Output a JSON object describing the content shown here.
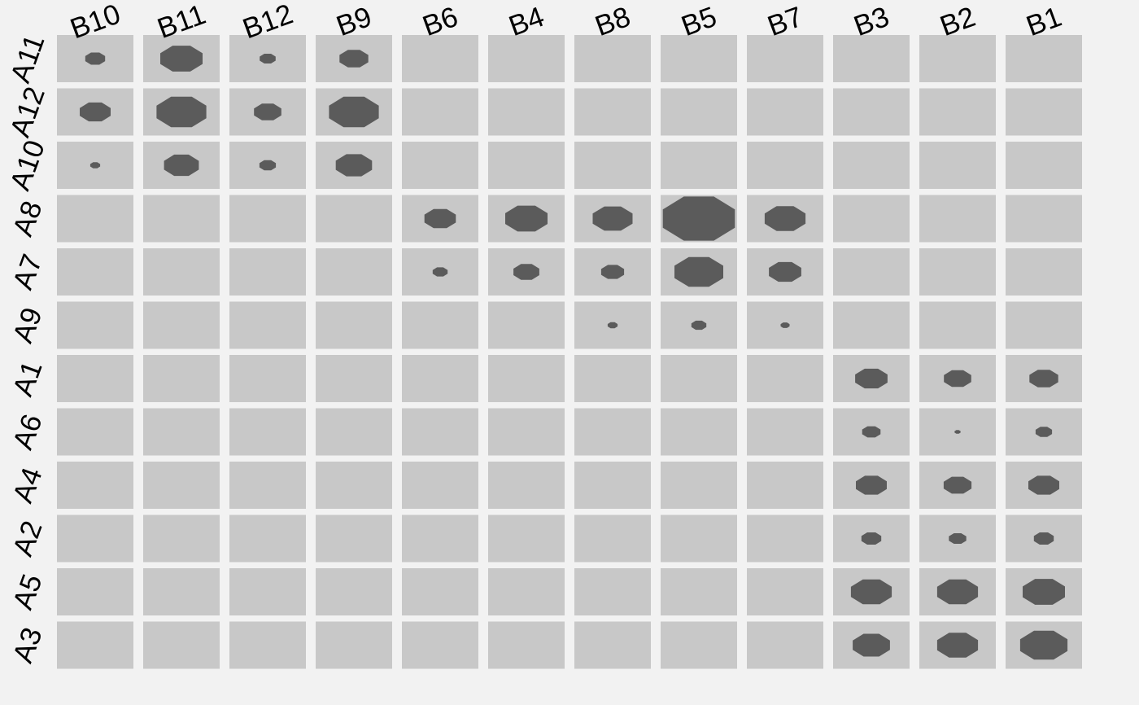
{
  "chart_data": {
    "type": "heatmap",
    "title": "",
    "xlabel": "",
    "ylabel": "",
    "columns": [
      "B10",
      "B11",
      "B12",
      "B9",
      "B6",
      "B4",
      "B8",
      "B5",
      "B7",
      "B3",
      "B2",
      "B1"
    ],
    "rows": [
      "A11",
      "A12",
      "A10",
      "A8",
      "A7",
      "A9",
      "A1",
      "A6",
      "A4",
      "A2",
      "A5",
      "A3"
    ],
    "values": [
      [
        0.4,
        0.85,
        0.32,
        0.58,
        null,
        null,
        null,
        null,
        null,
        null,
        null,
        null
      ],
      [
        0.62,
        1.0,
        0.55,
        1.0,
        null,
        null,
        null,
        null,
        null,
        null,
        null,
        null
      ],
      [
        0.2,
        0.7,
        0.33,
        0.73,
        null,
        null,
        null,
        null,
        null,
        null,
        null,
        null
      ],
      [
        null,
        null,
        null,
        null,
        0.63,
        0.85,
        0.8,
        1.45,
        0.82,
        null,
        null,
        null
      ],
      [
        null,
        null,
        null,
        null,
        0.3,
        0.52,
        0.46,
        0.98,
        0.65,
        null,
        null,
        null
      ],
      [
        null,
        null,
        null,
        null,
        null,
        null,
        0.2,
        0.3,
        0.18,
        null,
        null,
        null
      ],
      [
        null,
        null,
        null,
        null,
        null,
        null,
        null,
        null,
        null,
        0.65,
        0.55,
        0.58
      ],
      [
        null,
        null,
        null,
        null,
        null,
        null,
        null,
        null,
        null,
        0.37,
        0.12,
        0.33
      ],
      [
        null,
        null,
        null,
        null,
        null,
        null,
        null,
        null,
        null,
        0.62,
        0.56,
        0.62
      ],
      [
        null,
        null,
        null,
        null,
        null,
        null,
        null,
        null,
        null,
        0.4,
        0.35,
        0.4
      ],
      [
        null,
        null,
        null,
        null,
        null,
        null,
        null,
        null,
        null,
        0.82,
        0.82,
        0.85
      ],
      [
        null,
        null,
        null,
        null,
        null,
        null,
        null,
        null,
        null,
        0.75,
        0.82,
        0.95
      ]
    ],
    "value_range": [
      0,
      1.45
    ],
    "grid": false,
    "legend": "none",
    "colors": {
      "background": "#f2f2f2",
      "cell": "#c8c8c8",
      "mark": "#5b5b5b",
      "text": "#000000"
    }
  }
}
